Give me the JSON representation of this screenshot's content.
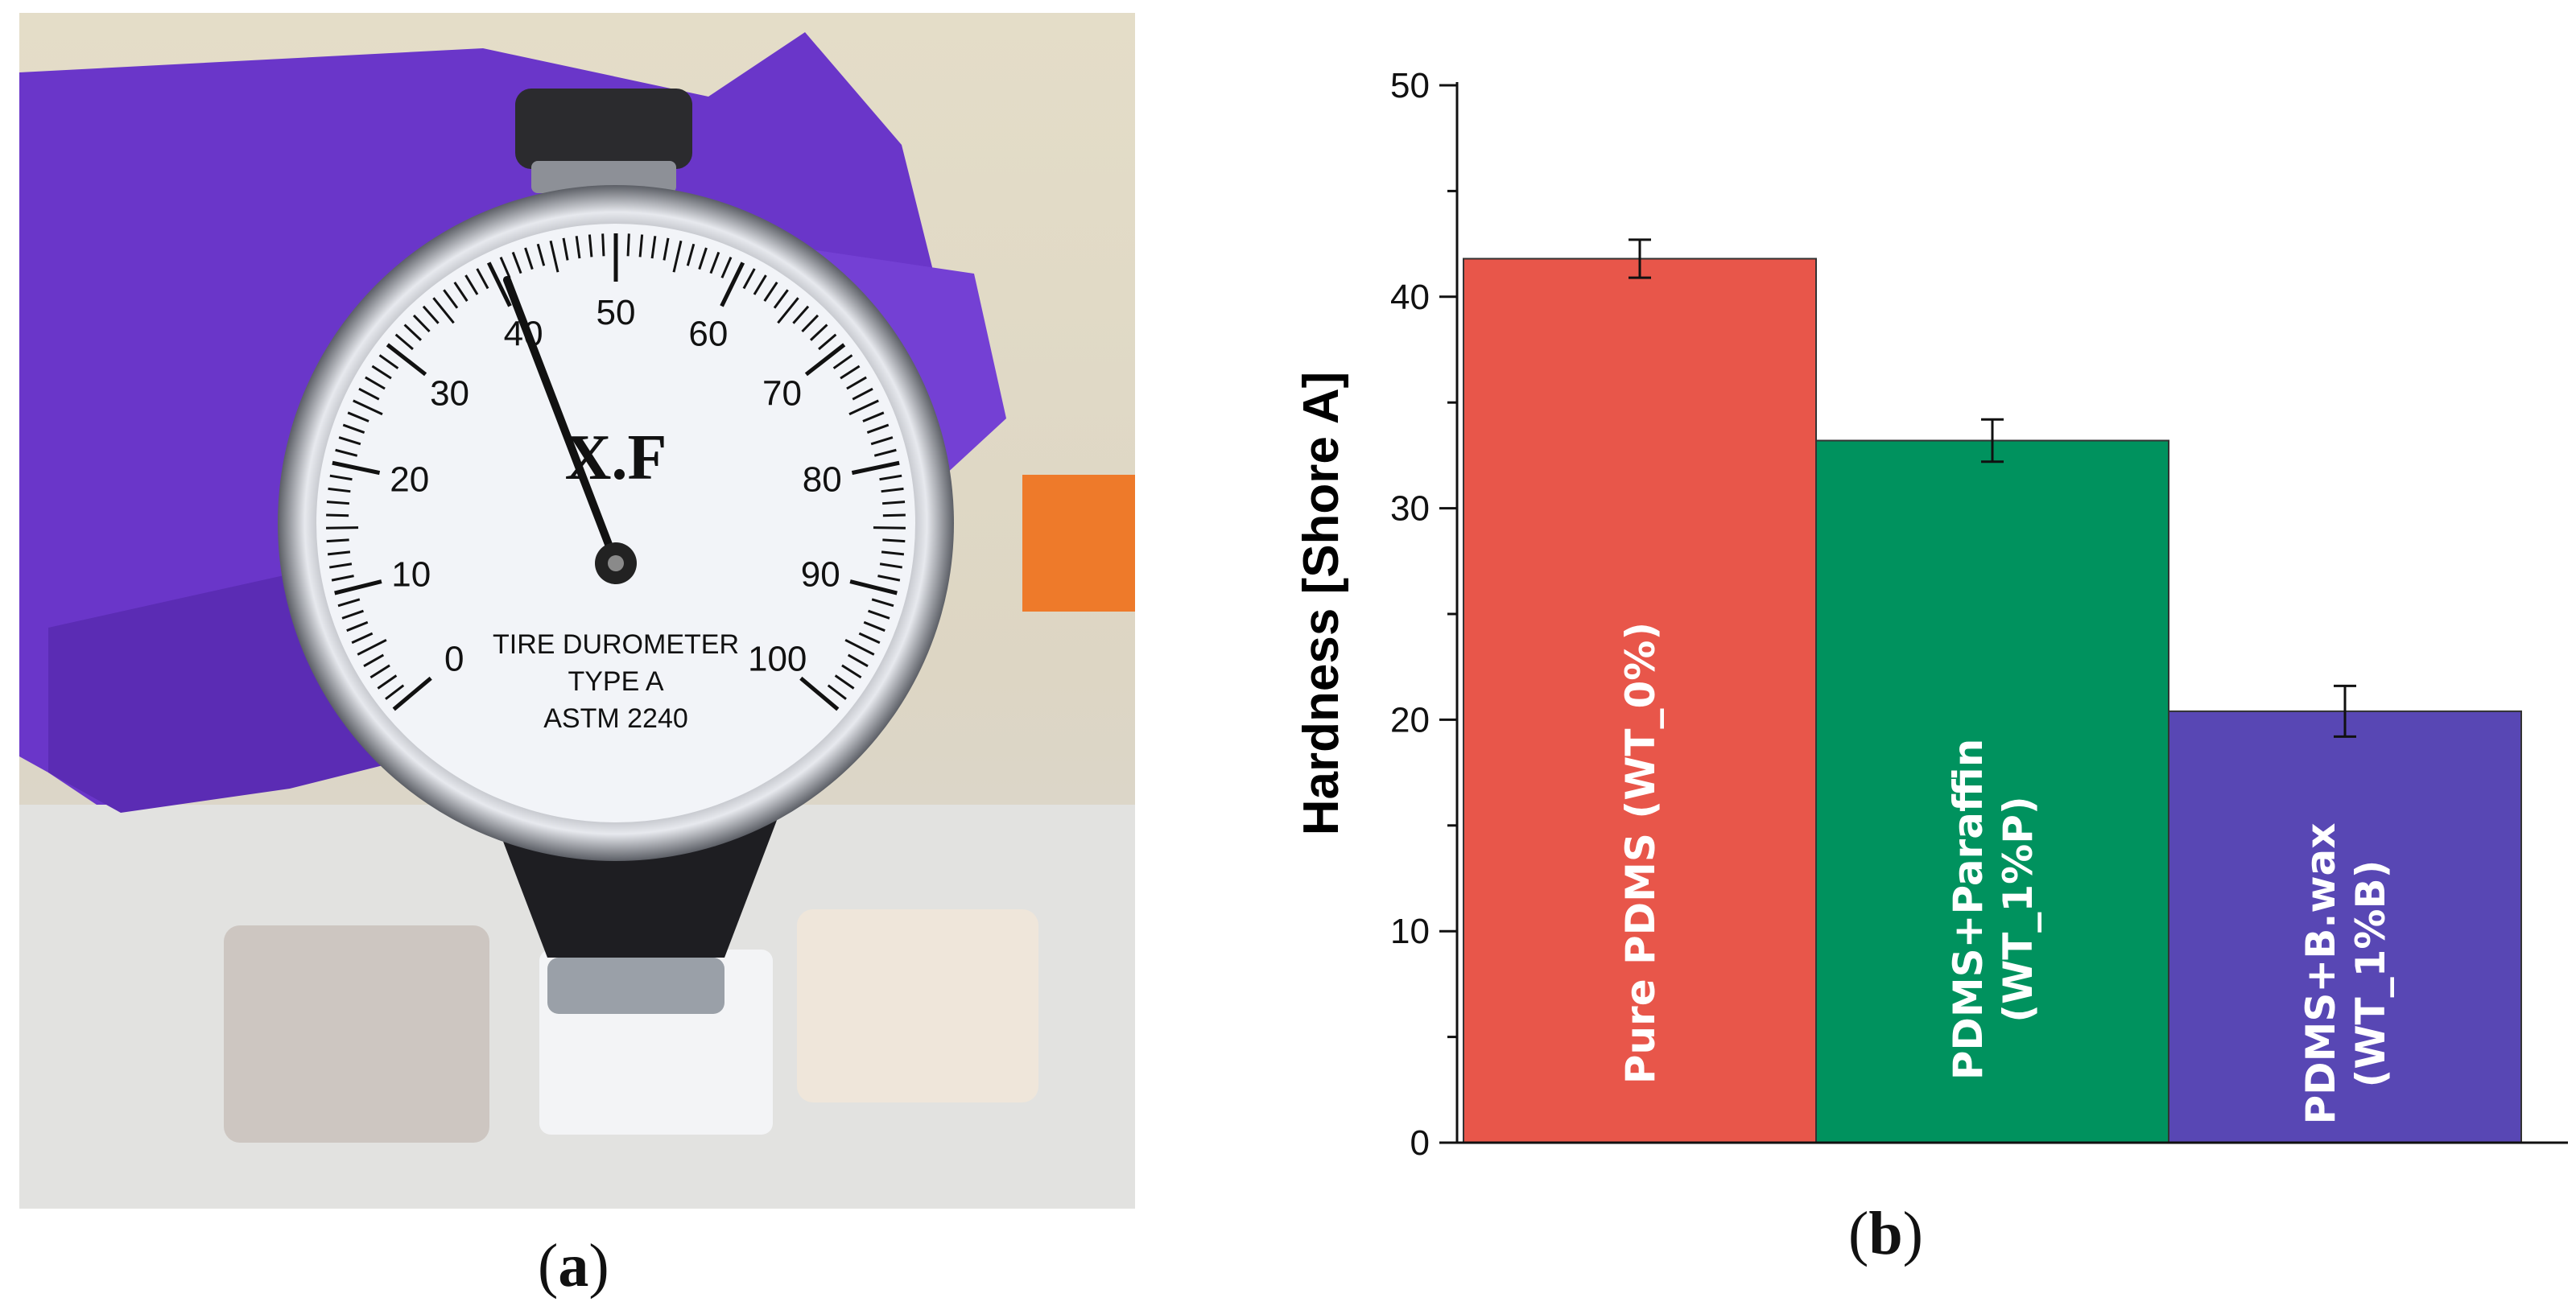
{
  "panels": {
    "a_label": "a",
    "b_label": "b"
  },
  "photo": {
    "dial_brand": "X.F",
    "dial_line1": "TIRE DUROMETER",
    "dial_line2": "TYPE  A",
    "dial_line3": "ASTM 2240",
    "dial_numbers": [
      "0",
      "10",
      "20",
      "30",
      "40",
      "50",
      "60",
      "70",
      "80",
      "90",
      "100"
    ],
    "needle_value": 41,
    "colors": {
      "glove": "#6a36c9",
      "dial_face": "#f2f4f8",
      "bezel": "#b9bcc2"
    }
  },
  "chart_data": {
    "type": "bar",
    "categories": [
      "Pure PDMS (WT_0%)",
      "PDMS+Paraffin (WT_1%P)",
      "PDMS+B.wax (WT_1%B)"
    ],
    "category_lines": [
      [
        "Pure PDMS (WT_0%)"
      ],
      [
        "PDMS+Paraffin",
        "(WT_1%P)"
      ],
      [
        "PDMS+B.wax",
        "(WT_1%B)"
      ]
    ],
    "values": [
      41.8,
      33.2,
      20.4
    ],
    "errors": [
      0.9,
      1.0,
      1.2
    ],
    "colors": [
      "#e8564a",
      "#00925e",
      "#5847b4"
    ],
    "ylabel": "Hardness [Shore A]",
    "ylim": [
      0,
      50
    ],
    "yticks": [
      "0",
      "10",
      "20",
      "30",
      "40",
      "50"
    ],
    "grid": false
  }
}
